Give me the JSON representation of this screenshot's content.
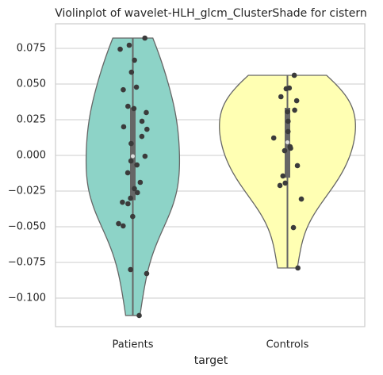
{
  "chart_data": {
    "type": "violin",
    "title": "Violinplot of wavelet-HLH_glcm_ClusterShade for cistern",
    "x_label": "target",
    "categories": [
      "Patients",
      "Controls"
    ],
    "series": [
      {
        "name": "Patients",
        "color": "#8dd3c7",
        "values": [
          0.0822,
          0.0744,
          0.0667,
          0.0772,
          0.0583,
          0.0478,
          0.046,
          0.0344,
          0.0328,
          0.03,
          0.0239,
          0.02,
          0.0183,
          0.0133,
          0.0083,
          -0.0006,
          -0.0039,
          -0.0067,
          -0.0122,
          -0.0189,
          -0.0233,
          -0.0261,
          -0.03,
          -0.0328,
          -0.0339,
          -0.0428,
          -0.0478,
          -0.0494,
          -0.08,
          -0.0828,
          -0.1122
        ]
      },
      {
        "name": "Controls",
        "color": "#ffffb3",
        "values": [
          0.0561,
          0.0472,
          0.0467,
          0.0411,
          0.0383,
          0.0317,
          0.0306,
          0.0239,
          0.0167,
          0.0122,
          0.0061,
          0.005,
          0.0033,
          -0.0072,
          -0.0144,
          -0.0194,
          -0.0211,
          -0.0306,
          -0.0506,
          -0.0789
        ]
      }
    ],
    "ylim": [
      -0.12,
      0.0922
    ],
    "yticks": [
      {
        "value": 0.075,
        "label": "0.075"
      },
      {
        "value": 0.05,
        "label": "0.050"
      },
      {
        "value": 0.025,
        "label": "0.025"
      },
      {
        "value": 0,
        "label": "0.000"
      },
      {
        "value": -0.025,
        "label": "−0.025"
      },
      {
        "value": -0.05,
        "label": "−0.050"
      },
      {
        "value": -0.075,
        "label": "−0.075"
      },
      {
        "value": -0.1,
        "label": "−0.100"
      }
    ],
    "grid": true
  }
}
